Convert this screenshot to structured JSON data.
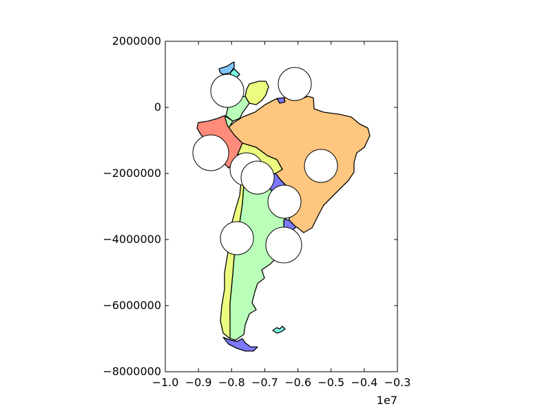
{
  "chart_data": {
    "type": "map",
    "title": "",
    "xlabel": "",
    "ylabel": "",
    "x_offset_label": "1e7",
    "xlim": [
      -1.0,
      -0.3
    ],
    "ylim": [
      -8000000,
      2000000
    ],
    "x_ticks": [
      {
        "value": -1.0,
        "label": "−1.0"
      },
      {
        "value": -0.9,
        "label": "−0.9"
      },
      {
        "value": -0.8,
        "label": "−0.8"
      },
      {
        "value": -0.7,
        "label": "−0.7"
      },
      {
        "value": -0.6,
        "label": "−0.6"
      },
      {
        "value": -0.5,
        "label": "−0.5"
      },
      {
        "value": -0.4,
        "label": "−0.4"
      },
      {
        "value": -0.3,
        "label": "−0.3"
      }
    ],
    "y_ticks": [
      {
        "value": 2000000,
        "label": "2000000"
      },
      {
        "value": 0,
        "label": "0"
      },
      {
        "value": -2000000,
        "label": "−2000000"
      },
      {
        "value": -4000000,
        "label": "−4000000"
      },
      {
        "value": -6000000,
        "label": "−6000000"
      },
      {
        "value": -8000000,
        "label": "−8000000"
      }
    ],
    "grid": false,
    "legend": "none",
    "regions": [
      {
        "name": "brazil",
        "color": "#ffc67f"
      },
      {
        "name": "argentina",
        "color": "#baffb9"
      },
      {
        "name": "chile",
        "color": "#ecfc80"
      },
      {
        "name": "peru",
        "color": "#ff8c7b"
      },
      {
        "name": "colombia",
        "color": "#baffb9"
      },
      {
        "name": "venezuela",
        "color": "#ecfc80"
      },
      {
        "name": "bolivia",
        "color": "#ecfc80"
      },
      {
        "name": "paraguay",
        "color": "#7c79ff"
      },
      {
        "name": "uruguay",
        "color": "#7c79ff"
      },
      {
        "name": "ecuador",
        "color": "#baffb9"
      },
      {
        "name": "panama",
        "color": "#82c6ff"
      },
      {
        "name": "costa-rica",
        "color": "#7cffe6"
      },
      {
        "name": "guyana",
        "color": "#7c79ff"
      },
      {
        "name": "tierra-del-fuego",
        "color": "#7c79ff"
      },
      {
        "name": "falklands",
        "color": "#7cffe6"
      }
    ]
  }
}
